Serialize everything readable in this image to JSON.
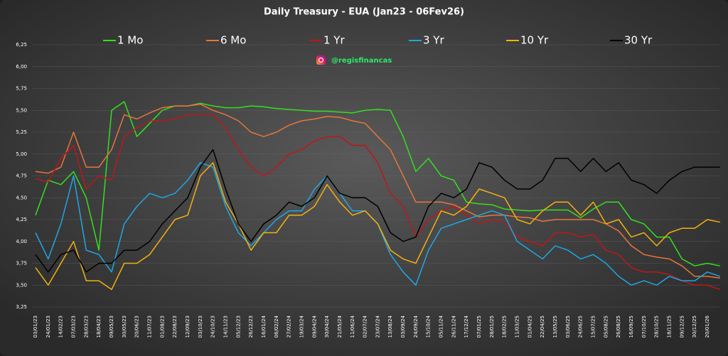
{
  "chart_data": {
    "type": "line",
    "title": "Daily Treasury - EUA (Jan23 - 06Fev26)",
    "annotation": "@regisfinancas",
    "categories": [
      "03/01/23",
      "24/01/23",
      "14/02/23",
      "07/03/23",
      "28/03/23",
      "18/04/23",
      "09/05/23",
      "30/05/23",
      "20/06/23",
      "11/07/23",
      "01/08/23",
      "22/08/23",
      "12/09/23",
      "03/10/23",
      "24/10/23",
      "14/11/23",
      "05/12/23",
      "26/12/23",
      "16/01/24",
      "06/02/24",
      "27/02/24",
      "19/03/24",
      "09/04/24",
      "30/04/24",
      "21/05/24",
      "11/06/24",
      "02/07/24",
      "23/07/24",
      "13/08/24",
      "03/09/24",
      "24/09/24",
      "15/10/24",
      "05/11/24",
      "26/11/24",
      "17/12/24",
      "07/01/25",
      "28/01/25",
      "18/02/25",
      "11/03/25",
      "01/04/25",
      "22/04/25",
      "13/05/25",
      "03/06/25",
      "24/06/25",
      "15/07/25",
      "05/08/25",
      "26/08/25",
      "16/09/25",
      "07/10/25",
      "28/10/25",
      "18/11/25",
      "09/12/25",
      "30/12/25",
      "20/01/26",
      null
    ],
    "series": [
      {
        "name": "1 Mo",
        "color": "#33e01f",
        "values": [
          4.3,
          4.7,
          4.65,
          4.8,
          4.5,
          3.9,
          5.5,
          5.6,
          5.2,
          5.35,
          5.5,
          5.55,
          5.55,
          5.58,
          5.55,
          5.53,
          5.53,
          5.55,
          5.54,
          5.52,
          5.51,
          5.5,
          5.49,
          5.49,
          5.48,
          5.47,
          5.5,
          5.51,
          5.5,
          5.2,
          4.8,
          4.95,
          4.75,
          4.7,
          4.45,
          4.43,
          4.42,
          4.37,
          4.36,
          4.35,
          4.36,
          4.36,
          4.36,
          4.27,
          4.37,
          4.45,
          4.45,
          4.25,
          4.2,
          4.05,
          4.05,
          3.8,
          3.72,
          3.75,
          3.72
        ]
      },
      {
        "name": "6 Mo",
        "color": "#e8743b",
        "values": [
          4.8,
          4.78,
          4.85,
          5.25,
          4.85,
          4.85,
          5.05,
          5.45,
          5.4,
          5.47,
          5.53,
          5.55,
          5.55,
          5.57,
          5.5,
          5.45,
          5.38,
          5.25,
          5.2,
          5.25,
          5.33,
          5.38,
          5.4,
          5.43,
          5.42,
          5.38,
          5.35,
          5.2,
          5.05,
          4.75,
          4.45,
          4.45,
          4.45,
          4.42,
          4.35,
          4.28,
          4.3,
          4.3,
          4.28,
          4.27,
          4.23,
          4.25,
          4.25,
          4.25,
          4.25,
          4.2,
          4.12,
          3.95,
          3.85,
          3.82,
          3.8,
          3.72,
          3.6,
          3.6,
          3.58
        ]
      },
      {
        "name": "1 Yr",
        "color": "#c0161a",
        "values": [
          4.72,
          4.68,
          4.95,
          5.1,
          4.6,
          4.75,
          4.7,
          5.2,
          5.3,
          5.38,
          5.38,
          5.4,
          5.45,
          5.45,
          5.45,
          5.3,
          5.05,
          4.85,
          4.75,
          4.85,
          5.0,
          5.05,
          5.15,
          5.2,
          5.2,
          5.1,
          5.1,
          4.9,
          4.55,
          4.4,
          4.05,
          4.25,
          4.35,
          4.4,
          4.3,
          4.2,
          4.25,
          4.22,
          4.05,
          4.0,
          3.95,
          4.1,
          4.1,
          4.05,
          4.08,
          3.9,
          3.85,
          3.7,
          3.65,
          3.65,
          3.62,
          3.55,
          3.5,
          3.5,
          3.45
        ]
      },
      {
        "name": "3 Yr",
        "color": "#1ea7e6",
        "values": [
          4.1,
          3.8,
          4.2,
          4.75,
          3.9,
          3.85,
          3.65,
          4.2,
          4.4,
          4.55,
          4.5,
          4.55,
          4.7,
          4.9,
          4.85,
          4.4,
          4.1,
          3.95,
          4.1,
          4.25,
          4.35,
          4.35,
          4.6,
          4.75,
          4.55,
          4.35,
          4.35,
          4.2,
          3.85,
          3.65,
          3.5,
          3.9,
          4.15,
          4.2,
          4.25,
          4.3,
          4.35,
          4.3,
          4.0,
          3.9,
          3.8,
          3.95,
          3.9,
          3.8,
          3.85,
          3.75,
          3.6,
          3.5,
          3.55,
          3.5,
          3.6,
          3.55,
          3.55,
          3.65,
          3.6
        ]
      },
      {
        "name": "10 Yr",
        "color": "#f2b10f",
        "values": [
          3.7,
          3.5,
          3.75,
          4.0,
          3.55,
          3.55,
          3.45,
          3.75,
          3.75,
          3.85,
          4.05,
          4.25,
          4.3,
          4.75,
          4.9,
          4.45,
          4.2,
          3.9,
          4.1,
          4.1,
          4.3,
          4.3,
          4.4,
          4.65,
          4.45,
          4.3,
          4.35,
          4.2,
          3.9,
          3.8,
          3.75,
          4.05,
          4.35,
          4.3,
          4.4,
          4.6,
          4.55,
          4.5,
          4.25,
          4.2,
          4.35,
          4.45,
          4.45,
          4.3,
          4.45,
          4.2,
          4.25,
          4.05,
          4.1,
          3.95,
          4.1,
          4.15,
          4.15,
          4.25,
          4.22
        ]
      },
      {
        "name": "30 Yr",
        "color": "#000000",
        "values": [
          3.85,
          3.65,
          3.85,
          3.9,
          3.65,
          3.75,
          3.75,
          3.9,
          3.9,
          4.0,
          4.2,
          4.35,
          4.5,
          4.85,
          5.05,
          4.6,
          4.2,
          4.0,
          4.2,
          4.3,
          4.45,
          4.4,
          4.5,
          4.75,
          4.55,
          4.5,
          4.5,
          4.4,
          4.1,
          4.0,
          4.05,
          4.4,
          4.55,
          4.5,
          4.6,
          4.9,
          4.85,
          4.7,
          4.6,
          4.6,
          4.7,
          4.95,
          4.95,
          4.8,
          4.95,
          4.8,
          4.9,
          4.7,
          4.65,
          4.55,
          4.7,
          4.8,
          4.85,
          4.85,
          4.85
        ]
      }
    ],
    "ylim": [
      3.25,
      6.25
    ],
    "yticks": [
      {
        "value": 3.25,
        "label": "3,25"
      },
      {
        "value": 3.5,
        "label": "3,50"
      },
      {
        "value": 3.75,
        "label": "3,75"
      },
      {
        "value": 4.0,
        "label": "4,00"
      },
      {
        "value": 4.25,
        "label": "4,25"
      },
      {
        "value": 4.5,
        "label": "4,50"
      },
      {
        "value": 4.75,
        "label": "4,75"
      },
      {
        "value": 5.0,
        "label": "5,00"
      },
      {
        "value": 5.25,
        "label": "5,25"
      },
      {
        "value": 5.5,
        "label": "5,50"
      },
      {
        "value": 5.75,
        "label": "5,75"
      },
      {
        "value": 6.0,
        "label": "6,00"
      },
      {
        "value": 6.25,
        "label": "6,25"
      }
    ],
    "grid": true
  }
}
